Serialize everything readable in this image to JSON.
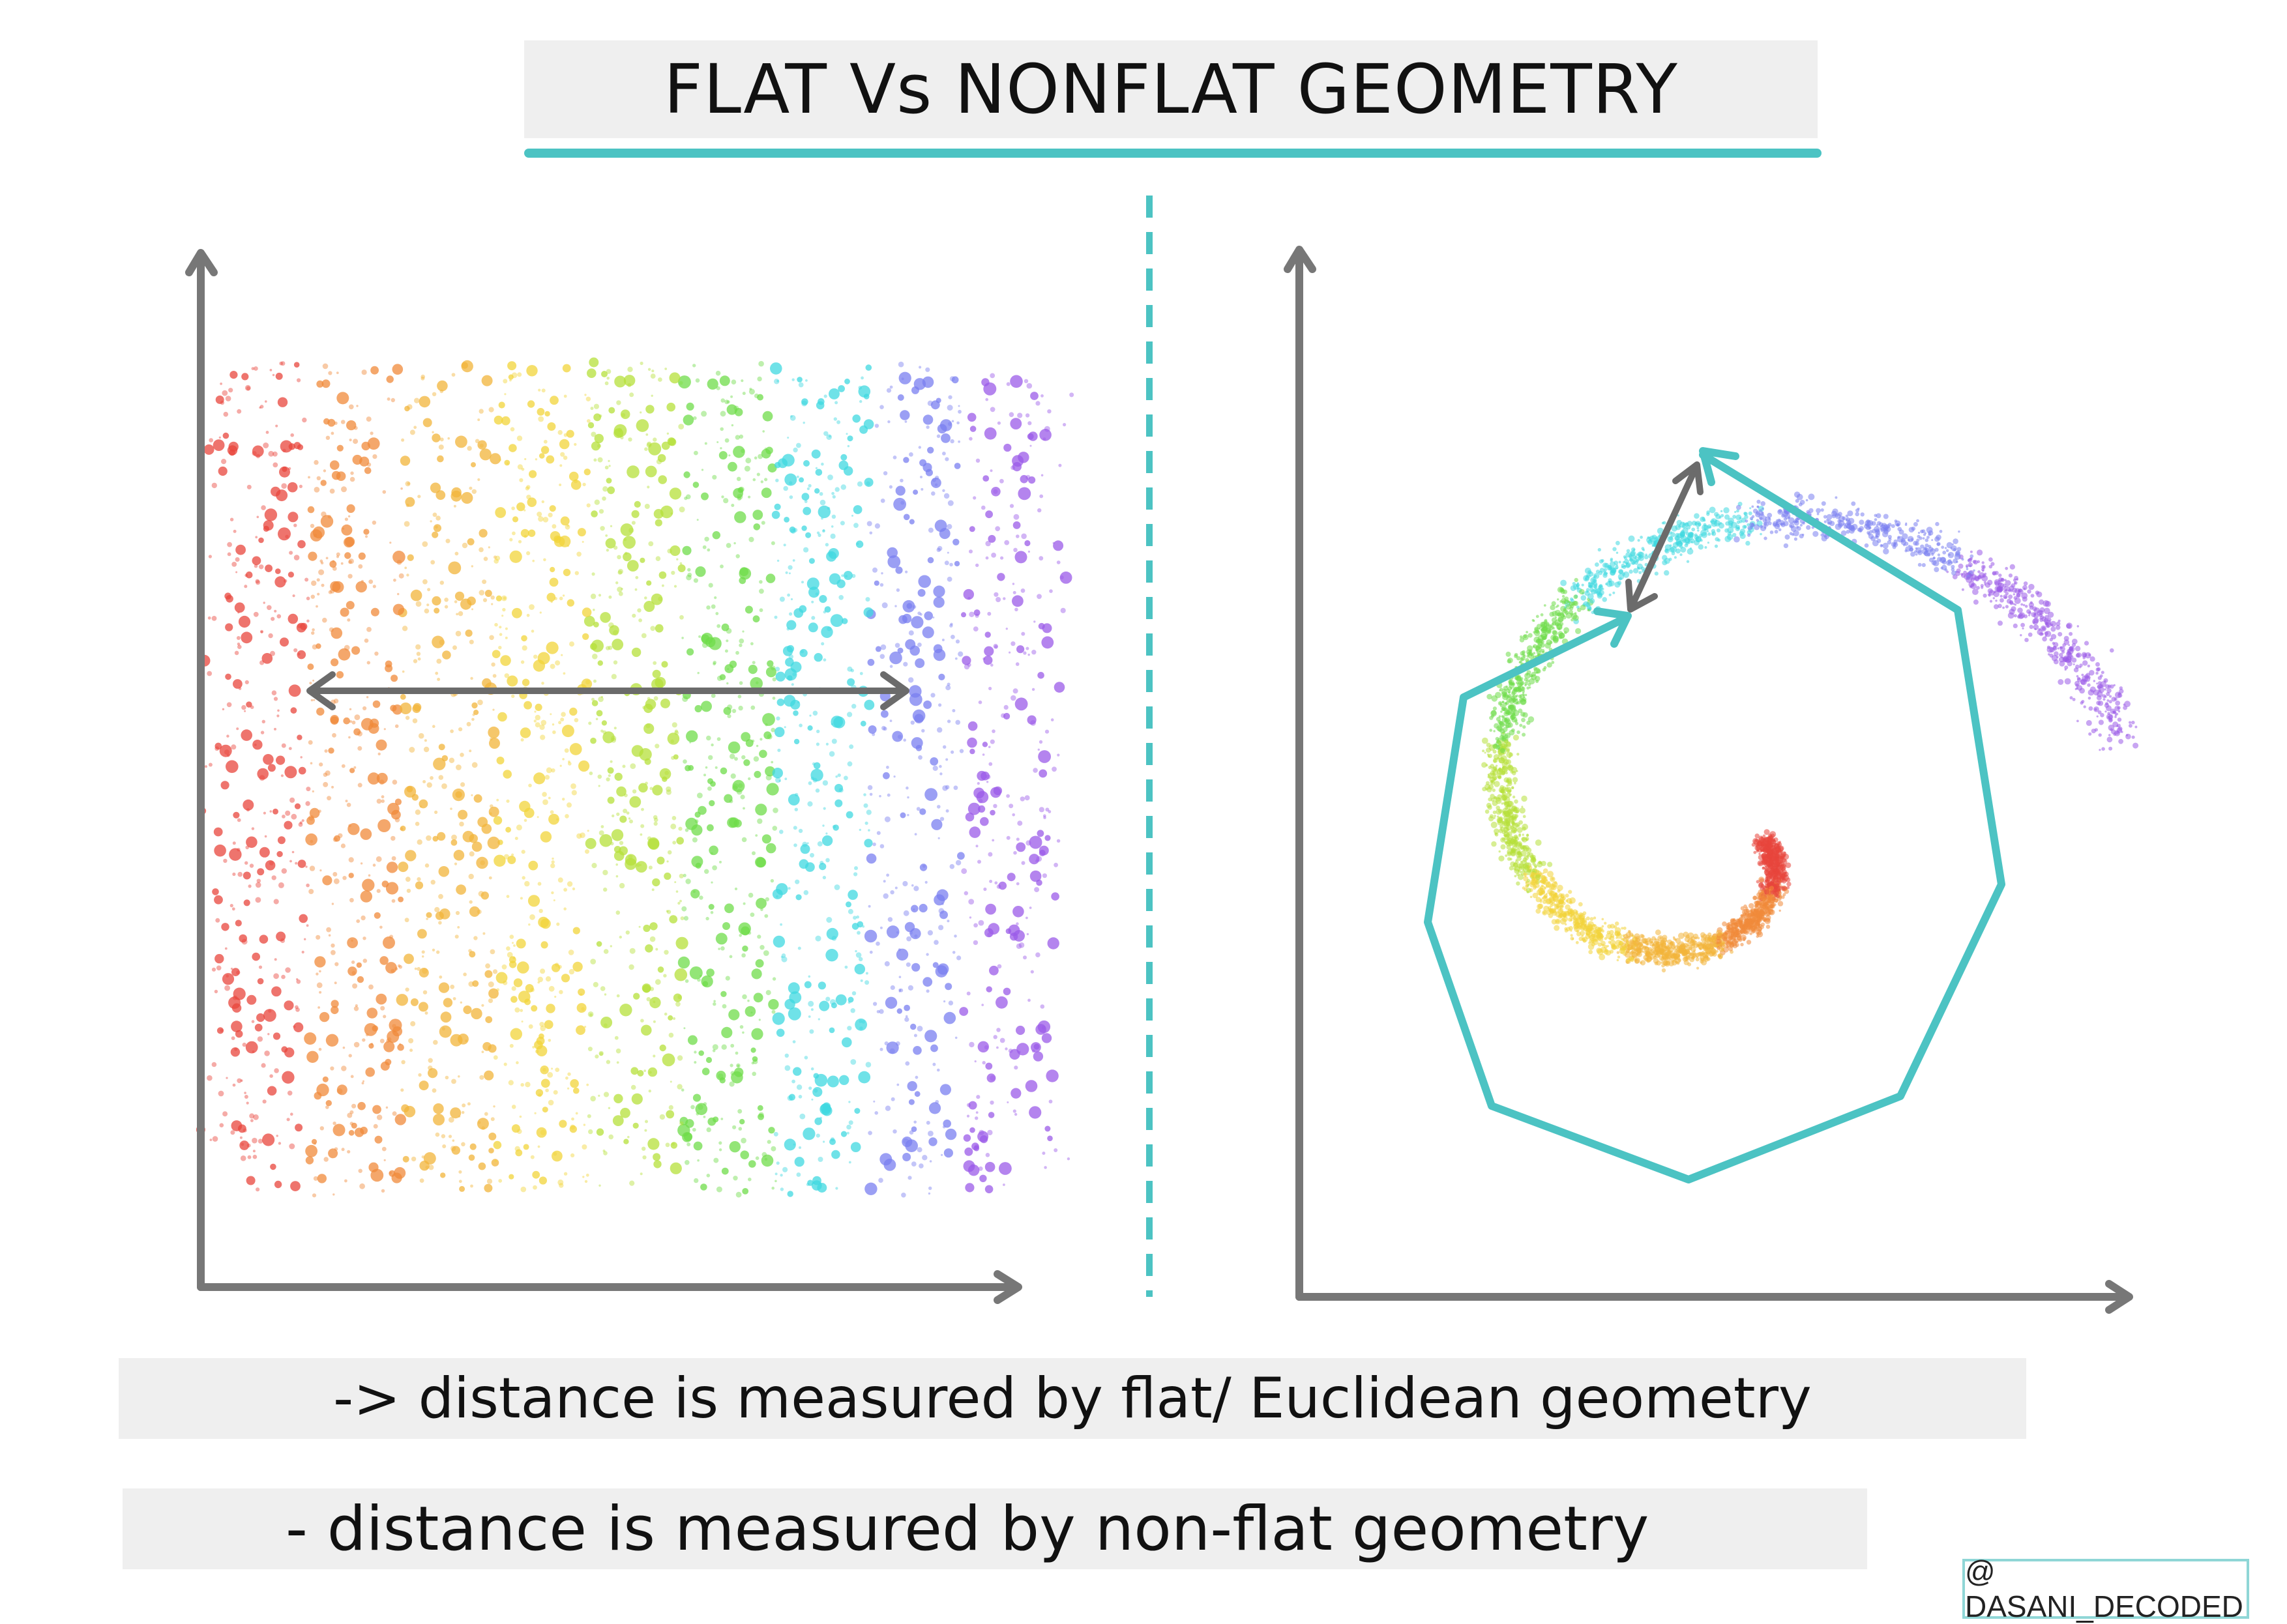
{
  "title": "FLAT Vs NONFLAT GEOMETRY",
  "captions": {
    "flat": "-> distance is measured by flat/ Euclidean geometry",
    "nonflat": "- distance is measured by non-flat geometry"
  },
  "credit": "@ DASANI_DECODED",
  "colors": {
    "accent": "#4cc3c3",
    "axis": "#777777",
    "spectrum": [
      "#e8453c",
      "#f08a3a",
      "#f2b43a",
      "#f2d43a",
      "#b6e03a",
      "#6fdc4a",
      "#3fd8e0",
      "#7a7ff0",
      "#9b5be8"
    ]
  }
}
